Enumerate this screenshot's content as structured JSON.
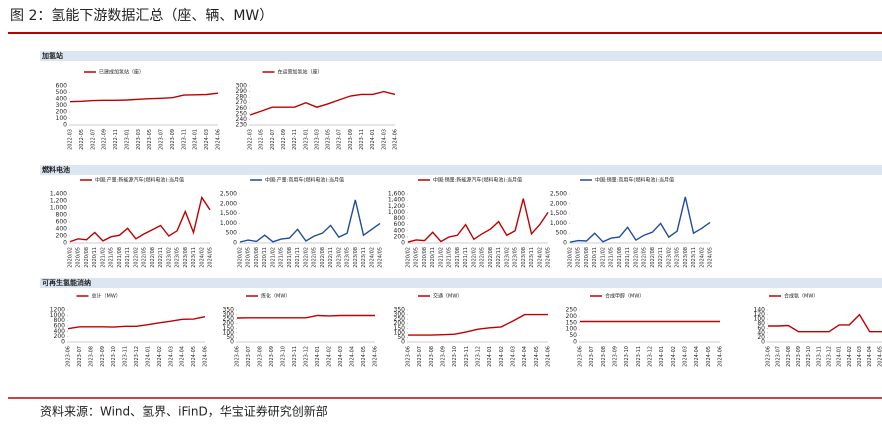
{
  "header": {
    "title": "图 2：氢能下游数据汇总（座、辆、MW）"
  },
  "sections": [
    "加氢站",
    "燃料电池",
    "可再生氢能消纳"
  ],
  "source": "资料来源：Wind、氢界、iFinD，华宝证券研究创新部",
  "chart_data": [
    {
      "type": "line",
      "series": [
        {
          "name": "已建成加氢站（座）",
          "color": "#c00000",
          "values": [
            358,
            365,
            375,
            380,
            380,
            385,
            395,
            405,
            410,
            420,
            460,
            465,
            470,
            490
          ]
        }
      ],
      "categories": [
        "2022-03",
        "2022-05",
        "2022-07",
        "2022-09",
        "2022-11",
        "2023-01",
        "2023-03",
        "2023-05",
        "2023-07",
        "2023-09",
        "2023-11",
        "2024-01",
        "2024-03",
        "2024-06"
      ],
      "ylim": [
        0,
        600
      ],
      "yticks": [
        0,
        100,
        200,
        300,
        400,
        500,
        600
      ]
    },
    {
      "type": "line",
      "series": [
        {
          "name": "在运营加氢站（座）",
          "color": "#c00000",
          "values": [
            248,
            255,
            262,
            262,
            262,
            270,
            262,
            268,
            275,
            282,
            285,
            285,
            290,
            285
          ]
        }
      ],
      "categories": [
        "2022-03",
        "2022-05",
        "2022-07",
        "2022-09",
        "2022-11",
        "2023-01",
        "2023-03",
        "2023-05",
        "2023-07",
        "2023-09",
        "2023-11",
        "2024-01",
        "2024-03",
        "2024-06"
      ],
      "ylim": [
        230,
        300
      ],
      "yticks": [
        230,
        240,
        250,
        260,
        270,
        280,
        290,
        300
      ]
    },
    {
      "type": "line",
      "series": [
        {
          "name": "中国:产量:新能源汽车(燃料电池):当月值",
          "color": "#c00000",
          "values": [
            40,
            120,
            90,
            300,
            60,
            180,
            220,
            420,
            120,
            260,
            380,
            500,
            200,
            350,
            900,
            300,
            1300,
            950
          ]
        }
      ],
      "categories": [
        "2020/02",
        "2020/05",
        "2020/08",
        "2020/11",
        "2021/02",
        "2021/05",
        "2021/08",
        "2021/11",
        "2022/02",
        "2022/05",
        "2022/08",
        "2022/11",
        "2023/02",
        "2023/05",
        "2023/08",
        "2023/11",
        "2024/02",
        "2024/05"
      ],
      "ylim": [
        0,
        1400
      ],
      "yticks": [
        0,
        200,
        400,
        600,
        800,
        {
          "value": 1000,
          "label": "1,000"
        },
        {
          "value": 1200,
          "label": "1,200"
        },
        {
          "value": 1400,
          "label": "1,400"
        }
      ]
    },
    {
      "type": "line",
      "series": [
        {
          "name": "中国:产量:商用车(燃料电池):当月值",
          "color": "#1f4e9a",
          "values": [
            50,
            150,
            80,
            400,
            60,
            200,
            250,
            700,
            100,
            350,
            500,
            900,
            300,
            500,
            2200,
            400,
            700,
            1000
          ]
        }
      ],
      "categories": [
        "2020/02",
        "2020/05",
        "2020/08",
        "2020/11",
        "2021/02",
        "2021/05",
        "2021/08",
        "2021/11",
        "2022/02",
        "2022/05",
        "2022/08",
        "2022/11",
        "2023/02",
        "2023/05",
        "2023/08",
        "2023/11",
        "2024/02",
        "2024/05"
      ],
      "ylim": [
        0,
        2500
      ],
      "yticks": [
        0,
        500,
        {
          "value": 1000,
          "label": "1,000"
        },
        {
          "value": 1500,
          "label": "1,500"
        },
        {
          "value": 2000,
          "label": "2,000"
        },
        {
          "value": 2500,
          "label": "2,500"
        }
      ]
    },
    {
      "type": "line",
      "series": [
        {
          "name": "中国:销量:新能源汽车(燃料电池):当月值",
          "color": "#c00000",
          "values": [
            30,
            100,
            80,
            350,
            50,
            200,
            250,
            600,
            120,
            300,
            450,
            700,
            250,
            400,
            1450,
            300,
            600,
            1000
          ]
        }
      ],
      "categories": [
        "2020/02",
        "2020/05",
        "2020/08",
        "2020/11",
        "2021/02",
        "2021/05",
        "2021/08",
        "2021/11",
        "2022/02",
        "2022/05",
        "2022/08",
        "2022/11",
        "2023/02",
        "2023/05",
        "2023/08",
        "2023/11",
        "2024/02",
        "2024/05"
      ],
      "ylim": [
        0,
        1600
      ],
      "yticks": [
        0,
        200,
        400,
        600,
        800,
        {
          "value": 1000,
          "label": "1,000"
        },
        {
          "value": 1200,
          "label": "1,200"
        },
        {
          "value": 1400,
          "label": "1,400"
        },
        {
          "value": 1600,
          "label": "1,600"
        }
      ]
    },
    {
      "type": "line",
      "series": [
        {
          "name": "中国:销量:商用车(燃料电池):当月值",
          "color": "#1f4e9a",
          "values": [
            40,
            120,
            100,
            500,
            60,
            250,
            300,
            800,
            150,
            400,
            550,
            1000,
            300,
            600,
            2350,
            500,
            750,
            1050
          ]
        }
      ],
      "categories": [
        "2020/02",
        "2020/05",
        "2020/08",
        "2020/11",
        "2021/02",
        "2021/05",
        "2021/08",
        "2021/11",
        "2022/02",
        "2022/05",
        "2022/08",
        "2022/11",
        "2023/02",
        "2023/05",
        "2023/08",
        "2023/11",
        "2024/02",
        "2024/05"
      ],
      "ylim": [
        0,
        2500
      ],
      "yticks": [
        0,
        500,
        {
          "value": 1000,
          "label": "1,000"
        },
        {
          "value": 1500,
          "label": "1,500"
        },
        {
          "value": 2000,
          "label": "2,000"
        },
        {
          "value": 2500,
          "label": "2,500"
        }
      ]
    },
    {
      "type": "line",
      "series": [
        {
          "name": "总计（MW）",
          "color": "#c00000",
          "values": [
            500,
            570,
            570,
            570,
            560,
            590,
            590,
            650,
            720,
            780,
            850,
            860,
            950
          ]
        }
      ],
      "categories": [
        "2023-06",
        "2023-07",
        "2023-08",
        "2023-09",
        "2023-10",
        "2023-11",
        "2023-12",
        "2024-01",
        "2024-02",
        "2024-03",
        "2024-04",
        "2024-05",
        "2024-06"
      ],
      "ylim": [
        0,
        1200
      ],
      "yticks": [
        0,
        200,
        400,
        600,
        800,
        1000,
        1200
      ]
    },
    {
      "type": "line",
      "series": [
        {
          "name": "炼化（MW）",
          "color": "#c00000",
          "values": [
            262,
            265,
            265,
            265,
            265,
            265,
            265,
            290,
            285,
            290,
            290,
            290,
            290
          ]
        }
      ],
      "categories": [
        "2023-06",
        "2023-07",
        "2023-08",
        "2023-09",
        "2023-10",
        "2023-11",
        "2023-12",
        "2024-01",
        "2024-02",
        "2024-03",
        "2024-04",
        "2024-05",
        "2024-06"
      ],
      "ylim": [
        0,
        350
      ],
      "yticks": [
        0,
        50,
        100,
        150,
        200,
        250,
        300,
        350
      ]
    },
    {
      "type": "line",
      "series": [
        {
          "name": "交通（MW）",
          "color": "#c00000",
          "values": [
            75,
            75,
            75,
            80,
            85,
            110,
            140,
            155,
            165,
            230,
            300,
            300,
            300
          ]
        }
      ],
      "categories": [
        "2023-06",
        "2023-07",
        "2023-08",
        "2023-09",
        "2023-10",
        "2023-11",
        "2023-12",
        "2024-01",
        "2024-02",
        "2024-03",
        "2024-04",
        "2024-05",
        "2024-06"
      ],
      "ylim": [
        0,
        350
      ],
      "yticks": [
        0,
        50,
        100,
        150,
        200,
        250,
        300,
        350
      ]
    },
    {
      "type": "line",
      "series": [
        {
          "name": "合成甲醇（MW）",
          "color": "#c00000",
          "values": [
            160,
            160,
            160,
            160,
            160,
            160,
            160,
            160,
            160,
            160,
            160,
            160,
            160
          ]
        }
      ],
      "categories": [
        "2023-06",
        "2023-07",
        "2023-08",
        "2023-09",
        "2023-10",
        "2023-11",
        "2023-12",
        "2024-01",
        "2024-02",
        "2024-03",
        "2024-04",
        "2024-05",
        "2024-06"
      ],
      "ylim": [
        0,
        250
      ],
      "yticks": [
        0,
        50,
        100,
        150,
        200,
        250
      ]
    },
    {
      "type": "line",
      "series": [
        {
          "name": "合成氨（MW）",
          "color": "#c00000",
          "values": [
            70,
            70,
            72,
            45,
            45,
            45,
            45,
            75,
            75,
            120,
            45,
            45,
            45
          ]
        }
      ],
      "categories": [
        "2023-06",
        "2023-07",
        "2023-08",
        "2023-09",
        "2023-10",
        "2023-11",
        "2023-12",
        "2024-01",
        "2024-02",
        "2024-03",
        "2024-04",
        "2024-05",
        "2024-06"
      ],
      "ylim": [
        0,
        140
      ],
      "yticks": [
        0,
        20,
        40,
        60,
        80,
        100,
        120,
        140
      ]
    }
  ]
}
